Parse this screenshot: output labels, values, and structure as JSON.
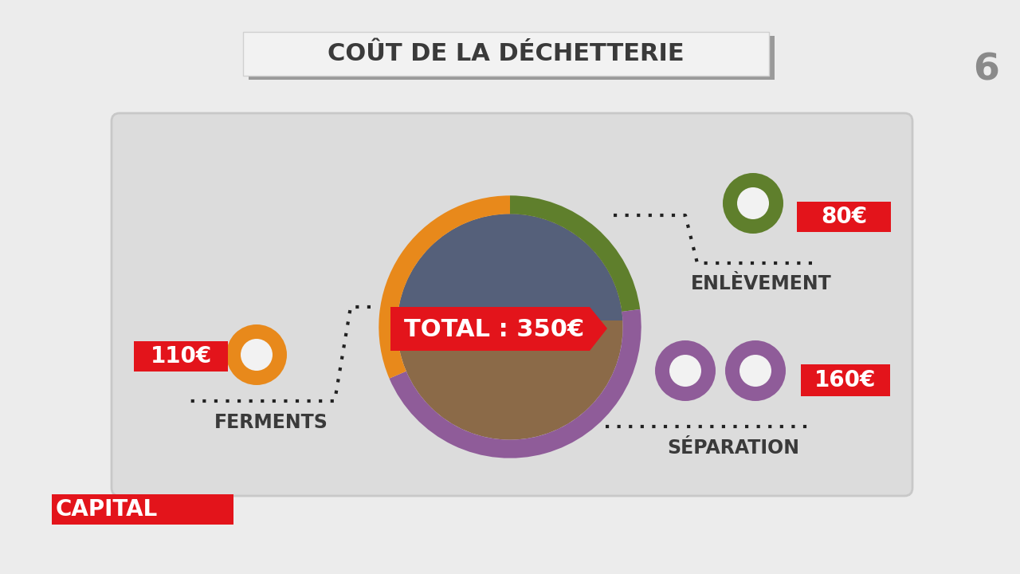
{
  "chart_data": {
    "type": "pie",
    "title": "COÛT DE LA DÉCHETTERIE",
    "categories": [
      "ENLÈVEMENT",
      "SÉPARATION",
      "FERMENTS"
    ],
    "values": [
      80,
      160,
      110
    ],
    "value_labels": [
      "80€",
      "160€",
      "110€"
    ],
    "data_labels": true,
    "colors": [
      "#5f7f2c",
      "#8f5c99",
      "#e8891b"
    ],
    "annotations": [
      "TOTAL : 350€"
    ]
  },
  "program": "CAPITAL",
  "channel_logo": "6"
}
